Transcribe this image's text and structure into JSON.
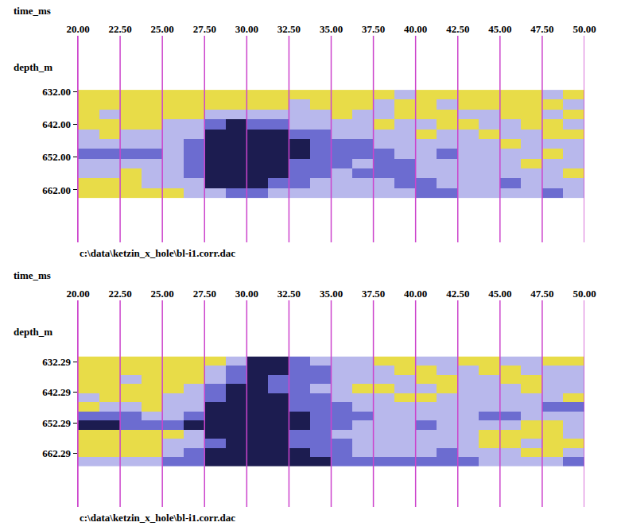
{
  "chart_data": [
    {
      "type": "heatmap",
      "xlabel": "time_ms",
      "ylabel": "depth_m",
      "annotations": [
        "c:\\data\\ketzin_x_hole\\bl-i1.corr.dac"
      ],
      "xlim": [
        20,
        50
      ],
      "xticks": [
        {
          "value": 20,
          "label": "20.00"
        },
        {
          "value": 22.5,
          "label": "22.50"
        },
        {
          "value": 25,
          "label": "25.00"
        },
        {
          "value": 27.5,
          "label": "27.50"
        },
        {
          "value": 30,
          "label": "30.00"
        },
        {
          "value": 32.5,
          "label": "32.50"
        },
        {
          "value": 35,
          "label": "35.00"
        },
        {
          "value": 37.5,
          "label": "37.50"
        },
        {
          "value": 40,
          "label": "40.00"
        },
        {
          "value": 42.5,
          "label": "42.50"
        },
        {
          "value": 45,
          "label": "45.00"
        },
        {
          "value": 47.5,
          "label": "47.50"
        },
        {
          "value": 50,
          "label": "50.00"
        }
      ],
      "ylim": [
        678,
        615
      ],
      "yticks": [
        {
          "value": 632,
          "label": "632.00"
        },
        {
          "value": 642,
          "label": "642.00"
        },
        {
          "value": 652,
          "label": "652.00"
        },
        {
          "value": 662,
          "label": "662.00"
        }
      ],
      "grid": true,
      "x": [
        20,
        21.25,
        22.5,
        23.75,
        25,
        26.25,
        27.5,
        28.75,
        30,
        31.25,
        32.5,
        33.75,
        35,
        36.25,
        37.5,
        38.75,
        40,
        41.25,
        42.5,
        43.75,
        45,
        46.25,
        47.5,
        48.75,
        50
      ],
      "y": [
        631.5,
        634.5,
        637.5,
        640.5,
        643.5,
        646.5,
        649.5,
        652.5,
        655.5,
        658.5,
        661.5,
        664.5
      ],
      "zlim": [
        0,
        3
      ],
      "colors": [
        "#e8dc48",
        "#b8b8ec",
        "#6c6cd0",
        "#1c1c50"
      ],
      "cells": [
        [
          0,
          0,
          0,
          0,
          0,
          0,
          0,
          0,
          0,
          0,
          0,
          0,
          0,
          0,
          0,
          1,
          0,
          0,
          0,
          0,
          0,
          0,
          1,
          0
        ],
        [
          0,
          0,
          0,
          0,
          0,
          0,
          0,
          0,
          0,
          0,
          1,
          0,
          0,
          0,
          1,
          0,
          0,
          1,
          0,
          0,
          0,
          0,
          0,
          1
        ],
        [
          0,
          1,
          0,
          0,
          0,
          0,
          1,
          1,
          1,
          1,
          1,
          1,
          0,
          1,
          1,
          0,
          0,
          0,
          1,
          1,
          0,
          0,
          1,
          0
        ],
        [
          0,
          0,
          0,
          0,
          1,
          1,
          2,
          3,
          2,
          2,
          1,
          1,
          1,
          1,
          0,
          1,
          1,
          0,
          0,
          1,
          1,
          0,
          0,
          1
        ],
        [
          1,
          0,
          1,
          1,
          1,
          1,
          3,
          3,
          3,
          3,
          2,
          2,
          1,
          1,
          1,
          1,
          0,
          1,
          1,
          0,
          1,
          1,
          0,
          0
        ],
        [
          1,
          1,
          1,
          1,
          1,
          2,
          3,
          3,
          3,
          3,
          3,
          2,
          2,
          2,
          1,
          1,
          1,
          1,
          1,
          1,
          0,
          1,
          1,
          1
        ],
        [
          2,
          2,
          2,
          2,
          1,
          2,
          3,
          3,
          3,
          3,
          3,
          2,
          2,
          2,
          2,
          1,
          1,
          2,
          1,
          1,
          1,
          1,
          0,
          1
        ],
        [
          1,
          1,
          1,
          1,
          1,
          2,
          3,
          3,
          3,
          3,
          2,
          2,
          2,
          1,
          2,
          2,
          1,
          1,
          1,
          1,
          1,
          0,
          1,
          1
        ],
        [
          1,
          1,
          0,
          1,
          1,
          2,
          3,
          3,
          3,
          3,
          2,
          2,
          1,
          2,
          2,
          2,
          1,
          1,
          1,
          1,
          1,
          1,
          1,
          0
        ],
        [
          0,
          0,
          0,
          1,
          1,
          1,
          3,
          3,
          3,
          2,
          2,
          1,
          1,
          1,
          1,
          2,
          2,
          1,
          1,
          1,
          2,
          1,
          1,
          1
        ],
        [
          0,
          0,
          0,
          0,
          0,
          1,
          1,
          2,
          2,
          1,
          1,
          1,
          1,
          1,
          1,
          1,
          2,
          2,
          1,
          1,
          1,
          1,
          2,
          1
        ]
      ]
    },
    {
      "type": "heatmap",
      "xlabel": "time_ms",
      "ylabel": "depth_m",
      "annotations": [
        "c:\\data\\ketzin_x_hole\\bl-i1.corr.dac"
      ],
      "xlim": [
        20,
        50
      ],
      "xticks": [
        {
          "value": 20,
          "label": "20.00"
        },
        {
          "value": 22.5,
          "label": "22.50"
        },
        {
          "value": 25,
          "label": "25.00"
        },
        {
          "value": 27.5,
          "label": "27.50"
        },
        {
          "value": 30,
          "label": "30.00"
        },
        {
          "value": 32.5,
          "label": "32.50"
        },
        {
          "value": 35,
          "label": "35.00"
        },
        {
          "value": 37.5,
          "label": "37.50"
        },
        {
          "value": 40,
          "label": "40.00"
        },
        {
          "value": 42.5,
          "label": "42.50"
        },
        {
          "value": 45,
          "label": "45.00"
        },
        {
          "value": 47.5,
          "label": "47.50"
        },
        {
          "value": 50,
          "label": "50.00"
        }
      ],
      "ylim": [
        680,
        612
      ],
      "yticks": [
        632.29,
        642.29,
        652.29,
        662.29
      ],
      "grid": true,
      "x": [
        20,
        21.25,
        22.5,
        23.75,
        25,
        26.25,
        27.5,
        28.75,
        30,
        31.25,
        32.5,
        33.75,
        35,
        36.25,
        37.5,
        38.75,
        40,
        41.25,
        42.5,
        43.75,
        45,
        46.25,
        47.5,
        48.75,
        50
      ],
      "y": [
        630.5,
        633.5,
        636.5,
        639.5,
        642.5,
        645.5,
        648.5,
        651.5,
        654.5,
        657.5,
        660.5,
        663.5,
        666.5
      ],
      "zlim": [
        0,
        3
      ],
      "colors": [
        "#e8dc48",
        "#b8b8ec",
        "#6c6cd0",
        "#1c1c50"
      ],
      "cells": [
        [
          0,
          0,
          0,
          0,
          0,
          0,
          0,
          1,
          3,
          3,
          2,
          1,
          1,
          1,
          0,
          0,
          1,
          1,
          0,
          0,
          1,
          1,
          0,
          0
        ],
        [
          0,
          0,
          0,
          0,
          0,
          0,
          1,
          2,
          3,
          3,
          2,
          2,
          1,
          1,
          1,
          0,
          0,
          1,
          1,
          0,
          0,
          1,
          1,
          1
        ],
        [
          0,
          0,
          1,
          0,
          0,
          0,
          1,
          2,
          3,
          2,
          2,
          2,
          1,
          1,
          1,
          1,
          0,
          0,
          1,
          1,
          0,
          0,
          1,
          1
        ],
        [
          0,
          0,
          0,
          0,
          0,
          1,
          2,
          3,
          3,
          2,
          2,
          1,
          1,
          0,
          0,
          1,
          1,
          0,
          1,
          1,
          1,
          0,
          1,
          1
        ],
        [
          1,
          0,
          0,
          0,
          1,
          1,
          2,
          3,
          3,
          3,
          2,
          2,
          1,
          1,
          1,
          0,
          0,
          1,
          1,
          1,
          1,
          1,
          1,
          0
        ],
        [
          0,
          1,
          1,
          0,
          1,
          1,
          3,
          3,
          3,
          3,
          2,
          2,
          2,
          1,
          1,
          1,
          1,
          1,
          1,
          1,
          1,
          1,
          2,
          2
        ],
        [
          2,
          2,
          2,
          1,
          1,
          2,
          3,
          3,
          3,
          3,
          3,
          2,
          2,
          2,
          1,
          1,
          1,
          1,
          1,
          2,
          2,
          1,
          1,
          1
        ],
        [
          3,
          3,
          2,
          2,
          2,
          3,
          3,
          3,
          3,
          3,
          3,
          2,
          2,
          1,
          1,
          1,
          2,
          1,
          1,
          1,
          1,
          0,
          0,
          1
        ],
        [
          0,
          0,
          0,
          0,
          0,
          1,
          3,
          3,
          3,
          3,
          2,
          2,
          1,
          1,
          1,
          1,
          1,
          1,
          1,
          0,
          0,
          0,
          0,
          1
        ],
        [
          0,
          0,
          0,
          0,
          1,
          1,
          2,
          3,
          3,
          3,
          2,
          2,
          2,
          1,
          1,
          1,
          1,
          1,
          1,
          0,
          0,
          1,
          0,
          0
        ],
        [
          0,
          0,
          0,
          0,
          1,
          2,
          3,
          3,
          3,
          3,
          3,
          2,
          2,
          1,
          1,
          1,
          1,
          2,
          1,
          1,
          1,
          0,
          0,
          1
        ],
        [
          1,
          1,
          1,
          1,
          2,
          2,
          3,
          3,
          3,
          3,
          3,
          3,
          2,
          2,
          2,
          2,
          2,
          2,
          2,
          1,
          1,
          1,
          1,
          2
        ]
      ]
    }
  ]
}
